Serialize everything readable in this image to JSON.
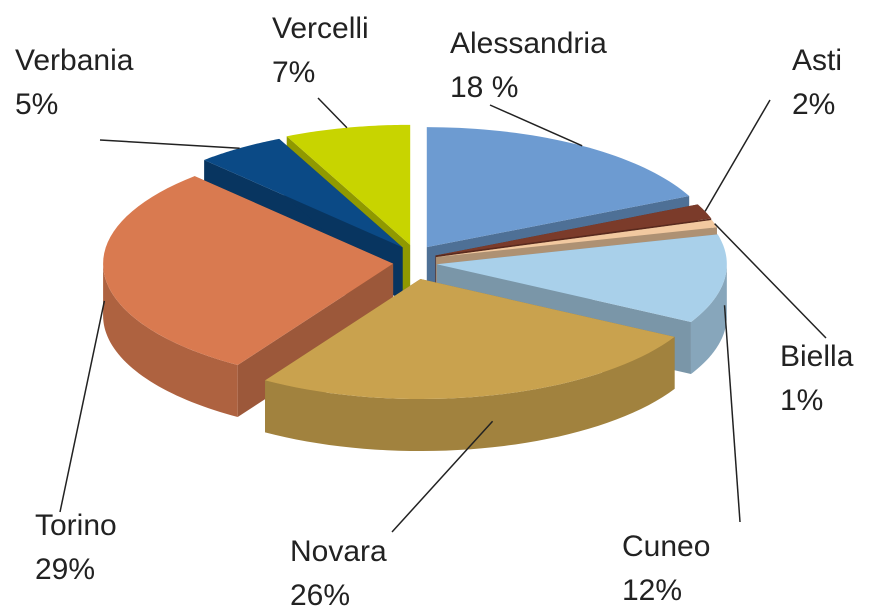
{
  "chart_data": {
    "type": "pie",
    "categories": [
      "Alessandria",
      "Asti",
      "Biella",
      "Cuneo",
      "Novara",
      "Torino",
      "Verbania",
      "Vercelli"
    ],
    "values": [
      18,
      2,
      1,
      12,
      26,
      29,
      5,
      7
    ],
    "value_labels": [
      "18 %",
      "2%",
      "1%",
      "12%",
      "26%",
      "29%",
      "5%",
      "7%"
    ],
    "colors": [
      "#6d9bd1",
      "#7b3b2a",
      "#f2c9a0",
      "#a9d0ea",
      "#c9a24e",
      "#d97a50",
      "#0b4a86",
      "#c8d400"
    ]
  }
}
